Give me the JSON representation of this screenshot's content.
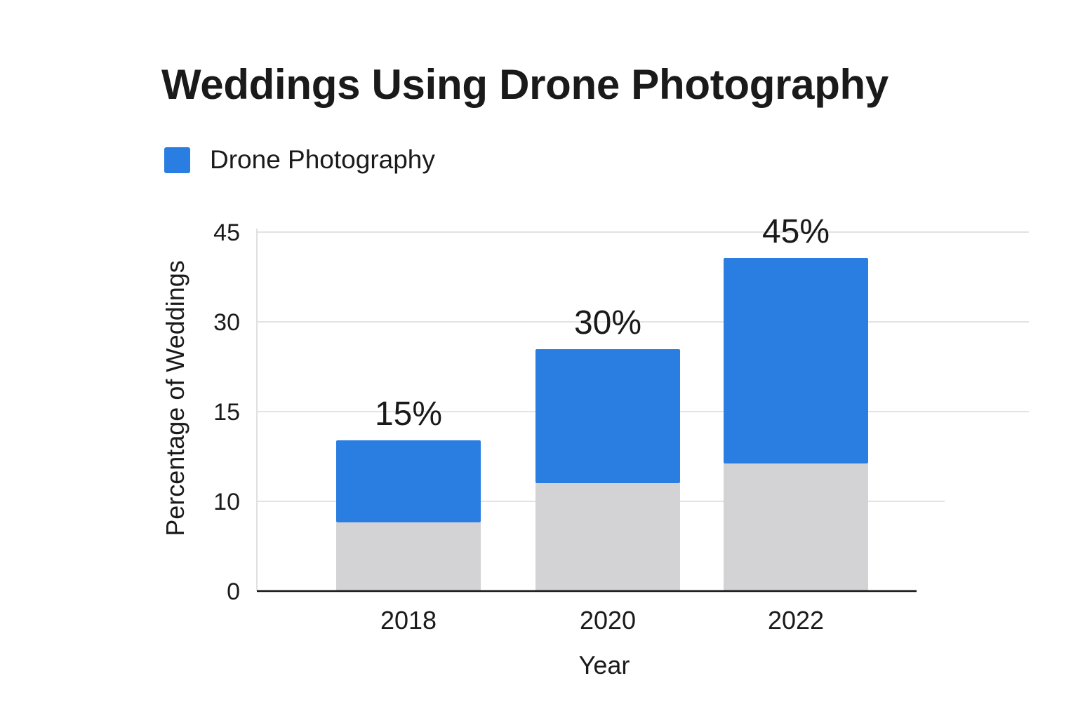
{
  "chart_data": {
    "type": "bar",
    "title": "Weddings Using Drone Photography",
    "xlabel": "Year",
    "ylabel": "Percentage of Weddings",
    "categories": [
      "2018",
      "2020",
      "2022"
    ],
    "y_ticks": [
      0,
      10,
      15,
      30,
      45
    ],
    "ylim": [
      0,
      45
    ],
    "grid": true,
    "legend_position": "top-left",
    "series": [
      {
        "name": "Drone Photography",
        "color": "#2a7de1",
        "values": [
          15,
          30,
          45
        ],
        "data_labels": [
          "15%",
          "30%",
          "45%"
        ]
      }
    ],
    "base_color": "#d3d3d6"
  }
}
